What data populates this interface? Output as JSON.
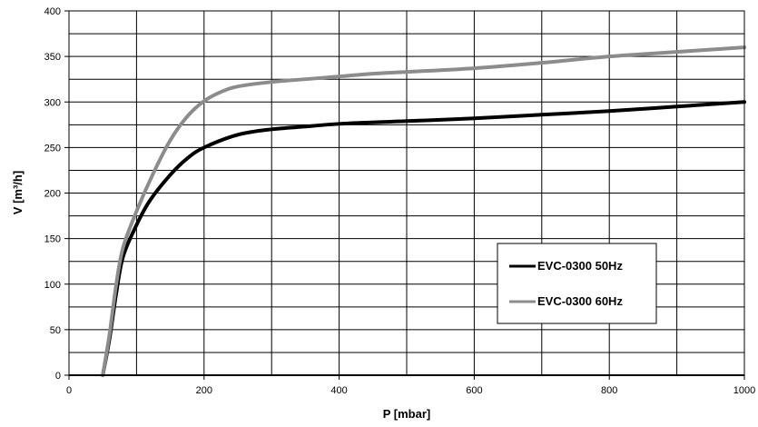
{
  "chart_data": {
    "type": "line",
    "xlabel": "P [mbar]",
    "ylabel": "V [m³/h]",
    "xlim": [
      0,
      1000
    ],
    "ylim": [
      0,
      400
    ],
    "xticks": [
      0,
      200,
      400,
      600,
      800,
      1000
    ],
    "yticks": [
      0,
      50,
      100,
      150,
      200,
      250,
      300,
      350,
      400
    ],
    "x_minor_step": 100,
    "y_minor_step": 25,
    "grid": true,
    "legend_position": "right, lower-middle",
    "series": [
      {
        "name": "EVC-0300 50Hz",
        "color": "#000000",
        "points": [
          [
            50,
            0
          ],
          [
            60,
            40
          ],
          [
            70,
            90
          ],
          [
            80,
            130
          ],
          [
            100,
            165
          ],
          [
            120,
            192
          ],
          [
            150,
            220
          ],
          [
            175,
            238
          ],
          [
            200,
            250
          ],
          [
            250,
            264
          ],
          [
            300,
            270
          ],
          [
            350,
            273
          ],
          [
            400,
            276
          ],
          [
            500,
            279
          ],
          [
            600,
            282
          ],
          [
            700,
            286
          ],
          [
            800,
            290
          ],
          [
            900,
            295
          ],
          [
            1000,
            300
          ]
        ]
      },
      {
        "name": "EVC-0300 60Hz",
        "color": "#8c8c8c",
        "points": [
          [
            50,
            0
          ],
          [
            60,
            45
          ],
          [
            70,
            100
          ],
          [
            80,
            140
          ],
          [
            100,
            180
          ],
          [
            125,
            222
          ],
          [
            150,
            258
          ],
          [
            175,
            284
          ],
          [
            200,
            301
          ],
          [
            225,
            311
          ],
          [
            250,
            317
          ],
          [
            300,
            322
          ],
          [
            350,
            325
          ],
          [
            400,
            328
          ],
          [
            450,
            331
          ],
          [
            500,
            333
          ],
          [
            600,
            337
          ],
          [
            700,
            343
          ],
          [
            800,
            350
          ],
          [
            900,
            355
          ],
          [
            1000,
            360
          ]
        ]
      }
    ]
  }
}
